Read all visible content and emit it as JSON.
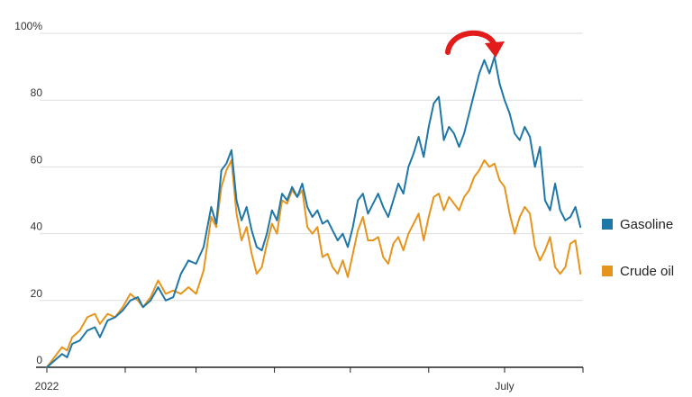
{
  "chart_data": {
    "type": "line",
    "title": "",
    "xlabel": "",
    "ylabel": "",
    "ylim": [
      0,
      100
    ],
    "yticks": [
      {
        "value": 0,
        "label": "0"
      },
      {
        "value": 20,
        "label": "20"
      },
      {
        "value": 40,
        "label": "40"
      },
      {
        "value": 60,
        "label": "60"
      },
      {
        "value": 80,
        "label": "80"
      },
      {
        "value": 100,
        "label": "100%"
      }
    ],
    "xlim": [
      "2022-01-01",
      "2022-08-01"
    ],
    "xticks": [
      {
        "value": "2022-01-01",
        "label": "2022"
      },
      {
        "value": "2022-02-01",
        "label": ""
      },
      {
        "value": "2022-03-01",
        "label": ""
      },
      {
        "value": "2022-04-01",
        "label": ""
      },
      {
        "value": "2022-05-01",
        "label": ""
      },
      {
        "value": "2022-06-01",
        "label": ""
      },
      {
        "value": "2022-07-01",
        "label": "July"
      },
      {
        "value": "2022-08-01",
        "label": ""
      }
    ],
    "grid": "horizontal",
    "legend": "right",
    "annotation": "curved red arrow over the gasoline peak pointing down",
    "series": [
      {
        "name": "Gasoline",
        "color": "#1f77a8",
        "points": [
          [
            "2022-01-01",
            0
          ],
          [
            "2022-01-04",
            2
          ],
          [
            "2022-01-07",
            4
          ],
          [
            "2022-01-09",
            3
          ],
          [
            "2022-01-11",
            7
          ],
          [
            "2022-01-14",
            8
          ],
          [
            "2022-01-17",
            11
          ],
          [
            "2022-01-20",
            12
          ],
          [
            "2022-01-22",
            9
          ],
          [
            "2022-01-25",
            14
          ],
          [
            "2022-01-28",
            15
          ],
          [
            "2022-01-31",
            17
          ],
          [
            "2022-02-03",
            20
          ],
          [
            "2022-02-06",
            21
          ],
          [
            "2022-02-08",
            18
          ],
          [
            "2022-02-11",
            20
          ],
          [
            "2022-02-14",
            24
          ],
          [
            "2022-02-17",
            20
          ],
          [
            "2022-02-20",
            21
          ],
          [
            "2022-02-23",
            28
          ],
          [
            "2022-02-26",
            32
          ],
          [
            "2022-03-01",
            31
          ],
          [
            "2022-03-04",
            36
          ],
          [
            "2022-03-07",
            48
          ],
          [
            "2022-03-09",
            43
          ],
          [
            "2022-03-11",
            59
          ],
          [
            "2022-03-13",
            61
          ],
          [
            "2022-03-15",
            65
          ],
          [
            "2022-03-17",
            50
          ],
          [
            "2022-03-19",
            44
          ],
          [
            "2022-03-21",
            48
          ],
          [
            "2022-03-23",
            41
          ],
          [
            "2022-03-25",
            36
          ],
          [
            "2022-03-27",
            35
          ],
          [
            "2022-03-29",
            40
          ],
          [
            "2022-03-31",
            47
          ],
          [
            "2022-04-02",
            44
          ],
          [
            "2022-04-04",
            52
          ],
          [
            "2022-04-06",
            50
          ],
          [
            "2022-04-08",
            54
          ],
          [
            "2022-04-10",
            51
          ],
          [
            "2022-04-12",
            55
          ],
          [
            "2022-04-14",
            48
          ],
          [
            "2022-04-16",
            45
          ],
          [
            "2022-04-18",
            47
          ],
          [
            "2022-04-20",
            43
          ],
          [
            "2022-04-22",
            44
          ],
          [
            "2022-04-24",
            41
          ],
          [
            "2022-04-26",
            38
          ],
          [
            "2022-04-28",
            40
          ],
          [
            "2022-04-30",
            36
          ],
          [
            "2022-05-02",
            42
          ],
          [
            "2022-05-04",
            50
          ],
          [
            "2022-05-06",
            52
          ],
          [
            "2022-05-08",
            46
          ],
          [
            "2022-05-10",
            49
          ],
          [
            "2022-05-12",
            52
          ],
          [
            "2022-05-14",
            48
          ],
          [
            "2022-05-16",
            45
          ],
          [
            "2022-05-18",
            50
          ],
          [
            "2022-05-20",
            55
          ],
          [
            "2022-05-22",
            52
          ],
          [
            "2022-05-24",
            60
          ],
          [
            "2022-05-26",
            64
          ],
          [
            "2022-05-28",
            69
          ],
          [
            "2022-05-30",
            63
          ],
          [
            "2022-06-01",
            72
          ],
          [
            "2022-06-03",
            79
          ],
          [
            "2022-06-05",
            81
          ],
          [
            "2022-06-07",
            68
          ],
          [
            "2022-06-09",
            72
          ],
          [
            "2022-06-11",
            70
          ],
          [
            "2022-06-13",
            66
          ],
          [
            "2022-06-15",
            70
          ],
          [
            "2022-06-17",
            76
          ],
          [
            "2022-06-19",
            82
          ],
          [
            "2022-06-21",
            88
          ],
          [
            "2022-06-23",
            92
          ],
          [
            "2022-06-25",
            88
          ],
          [
            "2022-06-27",
            93
          ],
          [
            "2022-06-29",
            85
          ],
          [
            "2022-07-01",
            80
          ],
          [
            "2022-07-03",
            76
          ],
          [
            "2022-07-05",
            70
          ],
          [
            "2022-07-07",
            68
          ],
          [
            "2022-07-09",
            72
          ],
          [
            "2022-07-11",
            69
          ],
          [
            "2022-07-13",
            60
          ],
          [
            "2022-07-15",
            66
          ],
          [
            "2022-07-17",
            50
          ],
          [
            "2022-07-19",
            47
          ],
          [
            "2022-07-21",
            55
          ],
          [
            "2022-07-23",
            47
          ],
          [
            "2022-07-25",
            44
          ],
          [
            "2022-07-27",
            45
          ],
          [
            "2022-07-29",
            48
          ],
          [
            "2022-07-31",
            42
          ]
        ]
      },
      {
        "name": "Crude oil",
        "color": "#e6951c",
        "points": [
          [
            "2022-01-01",
            0
          ],
          [
            "2022-01-04",
            3
          ],
          [
            "2022-01-07",
            6
          ],
          [
            "2022-01-09",
            5
          ],
          [
            "2022-01-11",
            9
          ],
          [
            "2022-01-14",
            11
          ],
          [
            "2022-01-17",
            15
          ],
          [
            "2022-01-20",
            16
          ],
          [
            "2022-01-22",
            13
          ],
          [
            "2022-01-25",
            16
          ],
          [
            "2022-01-28",
            15
          ],
          [
            "2022-01-31",
            18
          ],
          [
            "2022-02-03",
            22
          ],
          [
            "2022-02-06",
            20
          ],
          [
            "2022-02-08",
            18
          ],
          [
            "2022-02-11",
            21
          ],
          [
            "2022-02-14",
            26
          ],
          [
            "2022-02-17",
            22
          ],
          [
            "2022-02-20",
            23
          ],
          [
            "2022-02-23",
            22
          ],
          [
            "2022-02-26",
            24
          ],
          [
            "2022-03-01",
            22
          ],
          [
            "2022-03-04",
            29
          ],
          [
            "2022-03-07",
            45
          ],
          [
            "2022-03-09",
            42
          ],
          [
            "2022-03-11",
            54
          ],
          [
            "2022-03-13",
            59
          ],
          [
            "2022-03-15",
            62
          ],
          [
            "2022-03-17",
            46
          ],
          [
            "2022-03-19",
            38
          ],
          [
            "2022-03-21",
            42
          ],
          [
            "2022-03-23",
            34
          ],
          [
            "2022-03-25",
            28
          ],
          [
            "2022-03-27",
            30
          ],
          [
            "2022-03-29",
            37
          ],
          [
            "2022-03-31",
            43
          ],
          [
            "2022-04-02",
            40
          ],
          [
            "2022-04-04",
            50
          ],
          [
            "2022-04-06",
            49
          ],
          [
            "2022-04-08",
            53
          ],
          [
            "2022-04-10",
            51
          ],
          [
            "2022-04-12",
            53
          ],
          [
            "2022-04-14",
            42
          ],
          [
            "2022-04-16",
            40
          ],
          [
            "2022-04-18",
            42
          ],
          [
            "2022-04-20",
            33
          ],
          [
            "2022-04-22",
            34
          ],
          [
            "2022-04-24",
            30
          ],
          [
            "2022-04-26",
            28
          ],
          [
            "2022-04-28",
            32
          ],
          [
            "2022-04-30",
            27
          ],
          [
            "2022-05-02",
            34
          ],
          [
            "2022-05-04",
            41
          ],
          [
            "2022-05-06",
            45
          ],
          [
            "2022-05-08",
            38
          ],
          [
            "2022-05-10",
            38
          ],
          [
            "2022-05-12",
            39
          ],
          [
            "2022-05-14",
            33
          ],
          [
            "2022-05-16",
            31
          ],
          [
            "2022-05-18",
            37
          ],
          [
            "2022-05-20",
            39
          ],
          [
            "2022-05-22",
            35
          ],
          [
            "2022-05-24",
            40
          ],
          [
            "2022-05-26",
            43
          ],
          [
            "2022-05-28",
            46
          ],
          [
            "2022-05-30",
            38
          ],
          [
            "2022-06-01",
            45
          ],
          [
            "2022-06-03",
            51
          ],
          [
            "2022-06-05",
            52
          ],
          [
            "2022-06-07",
            47
          ],
          [
            "2022-06-09",
            51
          ],
          [
            "2022-06-11",
            49
          ],
          [
            "2022-06-13",
            47
          ],
          [
            "2022-06-15",
            51
          ],
          [
            "2022-06-17",
            53
          ],
          [
            "2022-06-19",
            57
          ],
          [
            "2022-06-21",
            59
          ],
          [
            "2022-06-23",
            62
          ],
          [
            "2022-06-25",
            60
          ],
          [
            "2022-06-27",
            61
          ],
          [
            "2022-06-29",
            56
          ],
          [
            "2022-07-01",
            54
          ],
          [
            "2022-07-03",
            46
          ],
          [
            "2022-07-05",
            40
          ],
          [
            "2022-07-07",
            45
          ],
          [
            "2022-07-09",
            48
          ],
          [
            "2022-07-11",
            46
          ],
          [
            "2022-07-13",
            36
          ],
          [
            "2022-07-15",
            32
          ],
          [
            "2022-07-17",
            35
          ],
          [
            "2022-07-19",
            39
          ],
          [
            "2022-07-21",
            30
          ],
          [
            "2022-07-23",
            28
          ],
          [
            "2022-07-25",
            30
          ],
          [
            "2022-07-27",
            37
          ],
          [
            "2022-07-29",
            38
          ],
          [
            "2022-07-31",
            28
          ]
        ]
      }
    ]
  }
}
